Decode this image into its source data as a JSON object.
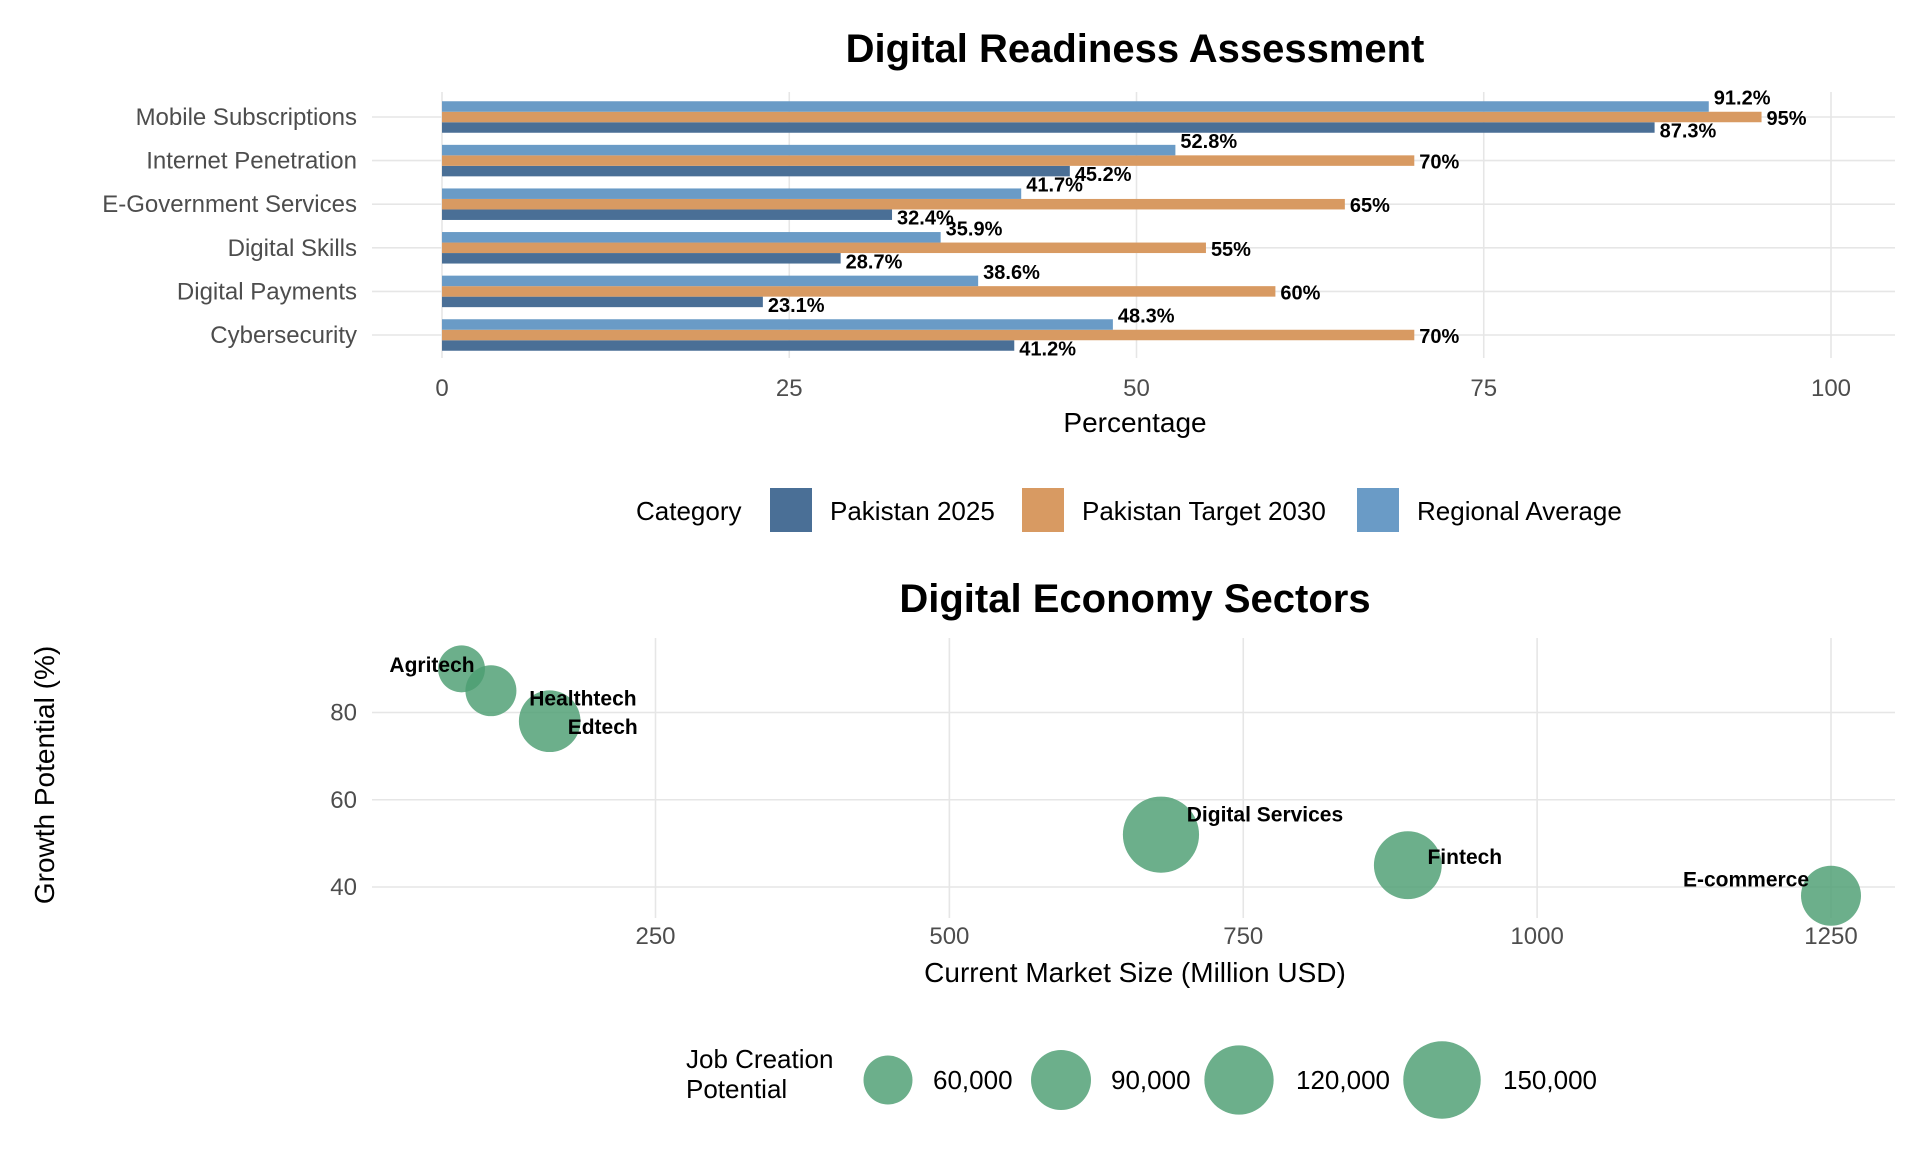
{
  "chart_data": [
    {
      "type": "bar",
      "orientation": "horizontal",
      "title": "Digital Readiness Assessment",
      "xlabel": "Percentage",
      "ylabel": "",
      "xlim": [
        0,
        100
      ],
      "x_ticks": [
        0,
        25,
        50,
        75,
        100
      ],
      "grid": true,
      "categories": [
        "Mobile Subscriptions",
        "Internet Penetration",
        "E-Government Services",
        "Digital Skills",
        "Digital Payments",
        "Cybersecurity"
      ],
      "series": [
        {
          "name": "Pakistan 2025",
          "color": "#4a6f96",
          "values": [
            87.3,
            45.2,
            32.4,
            28.7,
            23.1,
            41.2
          ],
          "labels": [
            "87.3%",
            "45.2%",
            "32.4%",
            "28.7%",
            "23.1%",
            "41.2%"
          ]
        },
        {
          "name": "Pakistan Target 2030",
          "color": "#d89a62",
          "values": [
            95,
            70,
            65,
            55,
            60,
            70
          ],
          "labels": [
            "95%",
            "70%",
            "65%",
            "55%",
            "60%",
            "70%"
          ]
        },
        {
          "name": "Regional Average",
          "color": "#6a9bc6",
          "values": [
            91.2,
            52.8,
            41.7,
            35.9,
            38.6,
            48.3
          ],
          "labels": [
            "91.2%",
            "52.8%",
            "41.7%",
            "35.9%",
            "38.6%",
            "48.3%"
          ]
        }
      ],
      "legend": {
        "title": "Category",
        "position": "bottom"
      }
    },
    {
      "type": "scatter",
      "title": "Digital Economy Sectors",
      "xlabel": "Current Market Size (Million USD)",
      "ylabel": "Growth Potential (%)",
      "xlim": [
        10,
        1260
      ],
      "ylim": [
        34,
        96
      ],
      "x_ticks": [
        250,
        500,
        750,
        1000,
        1250
      ],
      "y_ticks": [
        40,
        60,
        80
      ],
      "grid": true,
      "point_color": "#4c9d72",
      "points": [
        {
          "label": "Agritech",
          "x": 85,
          "y": 90,
          "size": 55000
        },
        {
          "label": "Healthtech",
          "x": 110,
          "y": 85,
          "size": 65000
        },
        {
          "label": "Edtech",
          "x": 160,
          "y": 78,
          "size": 95000
        },
        {
          "label": "Digital Services",
          "x": 680,
          "y": 52,
          "size": 145000
        },
        {
          "label": "Fintech",
          "x": 890,
          "y": 45,
          "size": 115000
        },
        {
          "label": "E-commerce",
          "x": 1250,
          "y": 38,
          "size": 90000
        }
      ],
      "legend": {
        "title": [
          "Job Creation",
          "Potential"
        ],
        "position": "bottom",
        "entries": [
          {
            "label": "60,000",
            "value": 60000
          },
          {
            "label": "90,000",
            "value": 90000
          },
          {
            "label": "120,000",
            "value": 120000
          },
          {
            "label": "150,000",
            "value": 150000
          }
        ]
      }
    }
  ]
}
